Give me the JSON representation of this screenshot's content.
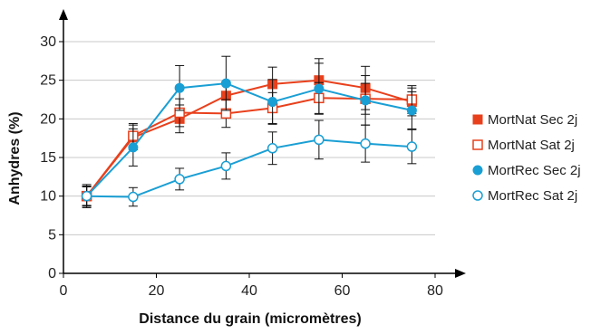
{
  "chart_data": {
    "type": "line",
    "xlabel": "Distance du grain (micromètres)",
    "ylabel": "Anhydres (%)",
    "xlim": [
      0,
      80
    ],
    "ylim": [
      0,
      30
    ],
    "xticks": [
      0,
      20,
      40,
      60,
      80
    ],
    "yticks": [
      0,
      5,
      10,
      15,
      20,
      25,
      30
    ],
    "grid": "horizontal",
    "legend_position": "right",
    "x": [
      5,
      15,
      25,
      35,
      45,
      55,
      65,
      75
    ],
    "series": [
      {
        "name": "MortNat Sec 2j",
        "color": "#e8401c",
        "marker": "filled-square",
        "values": [
          10.0,
          17.6,
          20.0,
          23.0,
          24.5,
          25.0,
          24.0,
          22.2
        ],
        "errors": [
          1.3,
          1.6,
          1.8,
          1.8,
          2.2,
          2.8,
          2.8,
          1.8
        ]
      },
      {
        "name": "MortNat Sat 2j",
        "color": "#e8401c",
        "marker": "open-square",
        "values": [
          10.0,
          17.8,
          20.8,
          20.7,
          21.4,
          22.7,
          22.6,
          22.5
        ],
        "errors": [
          1.2,
          1.6,
          1.8,
          1.8,
          2.0,
          2.0,
          2.0,
          1.8
        ]
      },
      {
        "name": "MortRec Sec 2j",
        "color": "#1a9fd4",
        "marker": "filled-circle",
        "values": [
          10.0,
          16.3,
          24.0,
          24.6,
          22.2,
          23.9,
          22.4,
          21.1
        ],
        "errors": [
          1.5,
          2.4,
          2.9,
          3.5,
          2.9,
          3.3,
          3.2,
          2.4
        ]
      },
      {
        "name": "MortRec Sat 2j",
        "color": "#1a9fd4",
        "marker": "open-circle",
        "values": [
          10.0,
          9.9,
          12.2,
          13.9,
          16.2,
          17.3,
          16.8,
          16.4
        ],
        "errors": [
          1.3,
          1.2,
          1.4,
          1.7,
          2.1,
          2.5,
          2.4,
          2.2
        ]
      }
    ]
  }
}
